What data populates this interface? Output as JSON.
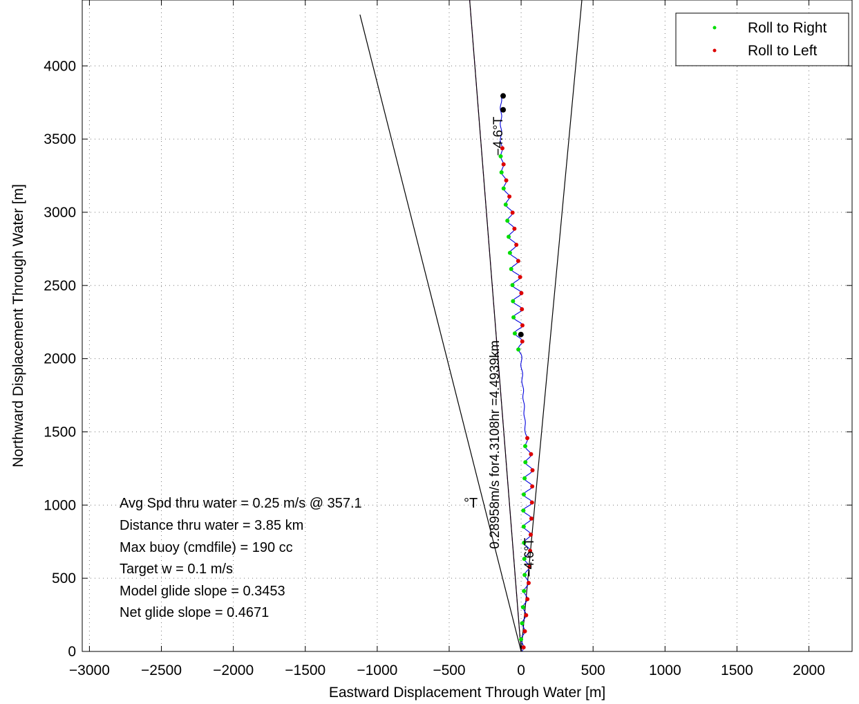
{
  "chart_data": {
    "type": "line",
    "xlabel": "Eastward Displacement Through Water [m]",
    "ylabel": "Northward Displacement Through Water [m]",
    "xlim": [
      -3050,
      2300
    ],
    "ylim": [
      0,
      4450
    ],
    "xticks": [
      -3000,
      -2500,
      -2000,
      -1500,
      -1000,
      -500,
      0,
      500,
      1000,
      1500,
      2000
    ],
    "yticks": [
      0,
      500,
      1000,
      1500,
      2000,
      2500,
      3000,
      3500,
      4000
    ],
    "xtick_labels": [
      "−3000",
      "−2500",
      "−2000",
      "−1500",
      "−1000",
      "−500",
      "0",
      "500",
      "1000",
      "1500",
      "2000"
    ],
    "ytick_labels": [
      "0",
      "500",
      "1000",
      "1500",
      "2000",
      "2500",
      "3000",
      "3500",
      "4000"
    ],
    "grid": true,
    "legend": {
      "placement": "top-right",
      "entries": [
        {
          "label": "Roll to Right",
          "color": "#00dd00"
        },
        {
          "label": "Roll to Left",
          "color": "#dd0000"
        }
      ]
    },
    "annotations": [
      "Avg Spd thru water =  0.25 m/s @ 357.1",
      "°T",
      "Distance thru water =  3.85 km",
      "Max buoy (cmdfile) = 190 cc",
      "Target w = 0.1 m/s",
      "Model glide slope = 0.3453",
      "Net glide slope = 0.4671"
    ],
    "rotated_labels": {
      "speed_line": "0.28958m/s for4.3108hr =4.4939km",
      "heading_upper": "−4.6°T",
      "heading_lower": "−4.6°T"
    },
    "reference_lines": [
      {
        "name": "cone-left",
        "color": "#000000",
        "x": [
          0,
          -1120
        ],
        "y": [
          0,
          4350
        ]
      },
      {
        "name": "cone-right",
        "color": "#000000",
        "x": [
          0,
          425
        ],
        "y": [
          0,
          4480
        ]
      },
      {
        "name": "heading-line",
        "color": "#cc00cc",
        "dashed": true,
        "x": [
          0,
          -360
        ],
        "y": [
          0,
          4480
        ]
      },
      {
        "name": "speed-line",
        "color": "#000000",
        "x": [
          0,
          -360
        ],
        "y": [
          0,
          4480
        ]
      }
    ],
    "track_centerline": {
      "color": "#0000dd",
      "y": [
        0,
        500,
        1000,
        1300,
        1500,
        2000,
        2200,
        2500,
        3000,
        3300,
        3500,
        3800
      ],
      "x": [
        5,
        40,
        45,
        55,
        30,
        0,
        -20,
        -30,
        -80,
        -130,
        -140,
        -140
      ],
      "amplitude": [
        10,
        15,
        30,
        25,
        3,
        5,
        30,
        30,
        20,
        10,
        5,
        5
      ]
    },
    "surfacing_markers": {
      "color": "#000000",
      "y": [
        2165,
        3700,
        3795
      ]
    }
  }
}
